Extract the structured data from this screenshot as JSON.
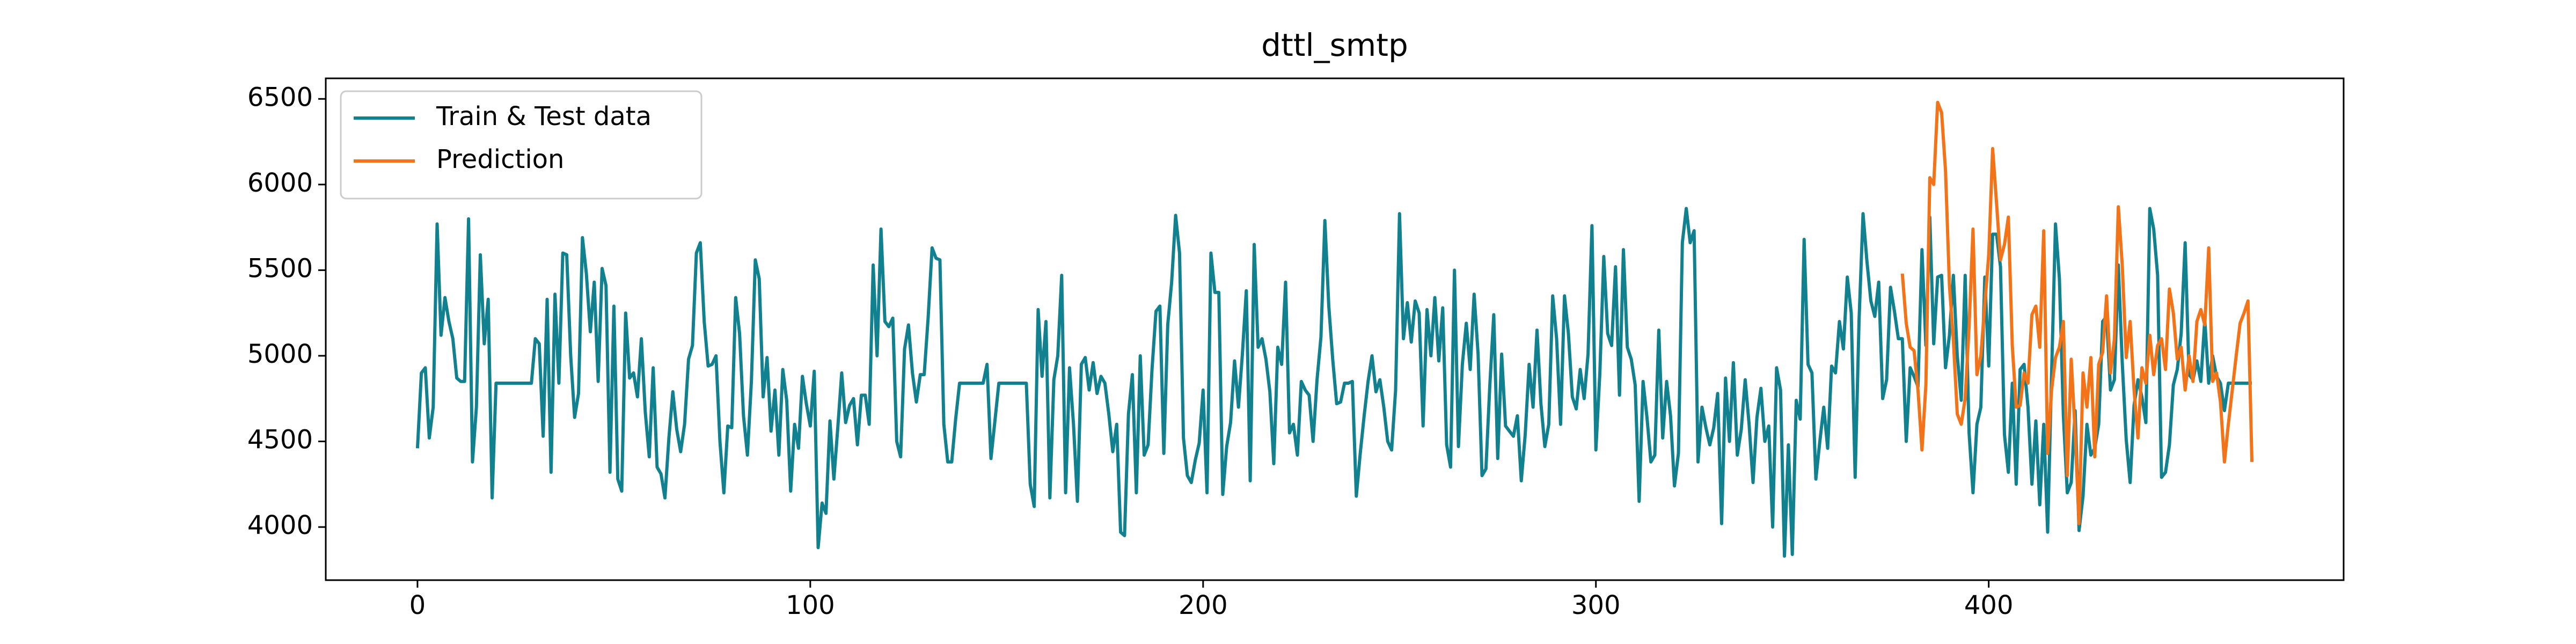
{
  "chart_data": {
    "type": "line",
    "title": "dttl_smtp",
    "xlim": [
      -23.35,
      490.35
    ],
    "xticks": [
      0,
      100,
      200,
      300,
      400
    ],
    "ylim": [
      3690,
      6620
    ],
    "yticks": [
      4000,
      4500,
      5000,
      5500,
      6000,
      6500
    ],
    "legend": "upper left",
    "series": [
      {
        "name": "Train & Test data",
        "color": "#11808f",
        "x": [
          0,
          1,
          2,
          3,
          4,
          5,
          6,
          7,
          8,
          9,
          10,
          11,
          12,
          13,
          14,
          15,
          16,
          17,
          18,
          19,
          20,
          21,
          22,
          23,
          24,
          25,
          26,
          27,
          28,
          29,
          30,
          31,
          32,
          33,
          34,
          35,
          36,
          37,
          38,
          39,
          40,
          41,
          42,
          43,
          44,
          45,
          46,
          47,
          48,
          49,
          50,
          51,
          52,
          53,
          54,
          55,
          56,
          57,
          58,
          59,
          60,
          61,
          62,
          63,
          64,
          65,
          66,
          67,
          68,
          69,
          70,
          71,
          72,
          73,
          74,
          75,
          76,
          77,
          78,
          79,
          80,
          81,
          82,
          83,
          84,
          85,
          86,
          87,
          88,
          89,
          90,
          91,
          92,
          93,
          94,
          95,
          96,
          97,
          98,
          99,
          100,
          101,
          102,
          103,
          104,
          105,
          106,
          107,
          108,
          109,
          110,
          111,
          112,
          113,
          114,
          115,
          116,
          117,
          118,
          119,
          120,
          121,
          122,
          123,
          124,
          125,
          126,
          127,
          128,
          129,
          130,
          131,
          132,
          133,
          134,
          135,
          136,
          137,
          138,
          139,
          140,
          141,
          142,
          143,
          144,
          145,
          146,
          147,
          148,
          149,
          150,
          151,
          152,
          153,
          154,
          155,
          156,
          157,
          158,
          159,
          160,
          161,
          162,
          163,
          164,
          165,
          166,
          167,
          168,
          169,
          170,
          171,
          172,
          173,
          174,
          175,
          176,
          177,
          178,
          179,
          180,
          181,
          182,
          183,
          184,
          185,
          186,
          187,
          188,
          189,
          190,
          191,
          192,
          193,
          194,
          195,
          196,
          197,
          198,
          199,
          200,
          201,
          202,
          203,
          204,
          205,
          206,
          207,
          208,
          209,
          210,
          211,
          212,
          213,
          214,
          215,
          216,
          217,
          218,
          219,
          220,
          221,
          222,
          223,
          224,
          225,
          226,
          227,
          228,
          229,
          230,
          231,
          232,
          233,
          234,
          235,
          236,
          237,
          238,
          239,
          240,
          241,
          242,
          243,
          244,
          245,
          246,
          247,
          248,
          249,
          250,
          251,
          252,
          253,
          254,
          255,
          256,
          257,
          258,
          259,
          260,
          261,
          262,
          263,
          264,
          265,
          266,
          267,
          268,
          269,
          270,
          271,
          272,
          273,
          274,
          275,
          276,
          277,
          278,
          279,
          280,
          281,
          282,
          283,
          284,
          285,
          286,
          287,
          288,
          289,
          290,
          291,
          292,
          293,
          294,
          295,
          296,
          297,
          298,
          299,
          300,
          301,
          302,
          303,
          304,
          305,
          306,
          307,
          308,
          309,
          310,
          311,
          312,
          313,
          314,
          315,
          316,
          317,
          318,
          319,
          320,
          321,
          322,
          323,
          324,
          325,
          326,
          327,
          328,
          329,
          330,
          331,
          332,
          333,
          334,
          335,
          336,
          337,
          338,
          339,
          340,
          341,
          342,
          343,
          344,
          345,
          346,
          347,
          348,
          349,
          350,
          351,
          352,
          353,
          354,
          355,
          356,
          357,
          358,
          359,
          360,
          361,
          362,
          363,
          364,
          365,
          366,
          367,
          368,
          369,
          370,
          371,
          372,
          373,
          374,
          375,
          376,
          377,
          378,
          379,
          380,
          381,
          382,
          383,
          384,
          385,
          386,
          387,
          388,
          389,
          390,
          391,
          392,
          393,
          394,
          395,
          396,
          397,
          398,
          399,
          400,
          401,
          402,
          403,
          404,
          405,
          406,
          407,
          408,
          409,
          410,
          411,
          412,
          413,
          414,
          415,
          416,
          417,
          418,
          419,
          420,
          421,
          422,
          423,
          424,
          425,
          426,
          427,
          428,
          429,
          430,
          431,
          432,
          433,
          434,
          435,
          436,
          437,
          438,
          439,
          440,
          441,
          442,
          443,
          444,
          445,
          446,
          447,
          448,
          449,
          450,
          451,
          452,
          453,
          454,
          455,
          456,
          457,
          458,
          459,
          460,
          461,
          462,
          463,
          464,
          465,
          466,
          467
        ],
        "values": [
          4460,
          4900,
          4930,
          4520,
          4700,
          5770,
          5120,
          5340,
          5200,
          5100,
          4870,
          4850,
          4850,
          5800,
          4380,
          4700,
          5590,
          5070,
          5330,
          4170,
          4840,
          4840,
          4840,
          4840,
          4840,
          4840,
          4840,
          4840,
          4840,
          4840,
          5100,
          5070,
          4530,
          5330,
          4320,
          5360,
          4840,
          5600,
          5590,
          5000,
          4640,
          4780,
          5690,
          5480,
          5140,
          5430,
          4850,
          5510,
          5410,
          4320,
          5290,
          4280,
          4210,
          5250,
          4870,
          4900,
          4760,
          5100,
          4670,
          4410,
          4930,
          4350,
          4310,
          4170,
          4520,
          4790,
          4570,
          4440,
          4600,
          4980,
          5060,
          5600,
          5660,
          5200,
          4940,
          4950,
          5000,
          4500,
          4200,
          4590,
          4580,
          5340,
          5130,
          4650,
          4420,
          4850,
          5560,
          5450,
          4760,
          4990,
          4560,
          4800,
          4420,
          4920,
          4740,
          4210,
          4600,
          4460,
          4880,
          4720,
          4590,
          4910,
          3880,
          4140,
          4080,
          4620,
          4280,
          4580,
          4900,
          4610,
          4710,
          4750,
          4480,
          4770,
          4770,
          4600,
          5530,
          5000,
          5740,
          5200,
          5170,
          5220,
          4500,
          4410,
          5040,
          5180,
          4900,
          4730,
          4890,
          4890,
          5220,
          5630,
          5570,
          5560,
          4600,
          4380,
          4380,
          4630,
          4840,
          4840,
          4840,
          4840,
          4840,
          4840,
          4840,
          4950,
          4400,
          4620,
          4840,
          4840,
          4840,
          4840,
          4840,
          4840,
          4840,
          4840,
          4250,
          4120,
          5270,
          4880,
          5200,
          4170,
          4860,
          5000,
          5470,
          4200,
          4930,
          4600,
          4150,
          4950,
          4990,
          4800,
          4960,
          4780,
          4880,
          4840,
          4660,
          4440,
          4600,
          3970,
          3950,
          4660,
          4890,
          4200,
          5000,
          4420,
          4480,
          4920,
          5260,
          5290,
          4430,
          5180,
          5430,
          5820,
          5600,
          4520,
          4300,
          4260,
          4390,
          4490,
          4800,
          4200,
          5600,
          5370,
          5370,
          4190,
          4470,
          4610,
          4970,
          4700,
          5010,
          5380,
          4270,
          5650,
          5050,
          5100,
          4980,
          4790,
          4370,
          5050,
          4950,
          5430,
          4550,
          4600,
          4420,
          4850,
          4800,
          4770,
          4500,
          4860,
          5110,
          5790,
          5290,
          4980,
          4720,
          4730,
          4840,
          4840,
          4850,
          4180,
          4430,
          4650,
          4850,
          5000,
          4790,
          4860,
          4700,
          4500,
          4450,
          4800,
          5830,
          5100,
          5310,
          5080,
          5320,
          5250,
          4590,
          5270,
          5000,
          5340,
          4970,
          5280,
          4480,
          4350,
          5500,
          4470,
          4950,
          5190,
          4920,
          5360,
          5010,
          4300,
          4340,
          4830,
          5240,
          4400,
          5010,
          4590,
          4560,
          4530,
          4650,
          4270,
          4540,
          4950,
          4700,
          5150,
          4720,
          4470,
          4600,
          5350,
          5100,
          4600,
          5350,
          5130,
          4760,
          4690,
          4920,
          4750,
          5010,
          5760,
          4450,
          4900,
          5580,
          5130,
          5060,
          5520,
          4770,
          5620,
          5050,
          4980,
          4830,
          4150,
          4850,
          4640,
          4380,
          4420,
          5150,
          4520,
          4850,
          4650,
          4240,
          4430,
          5660,
          5860,
          5660,
          5730,
          4380,
          4700,
          4580,
          4480,
          4580,
          4780,
          4020,
          4870,
          4500,
          4960,
          4420,
          4570,
          4860,
          4600,
          4260,
          4640,
          4810,
          4500,
          4590,
          4000,
          4930,
          4800,
          3830,
          4480,
          3840,
          4740,
          4630,
          5680,
          4950,
          4900,
          4280,
          4500,
          4700,
          4460,
          4940,
          4900,
          5200,
          5040,
          5460,
          5250,
          4290,
          5210,
          5830,
          5550,
          5320,
          5230,
          5430,
          4750,
          4860,
          5400,
          5260,
          5100,
          5100,
          4500,
          4930,
          4880,
          4820,
          5620,
          5060,
          5810,
          5070,
          5460,
          5470,
          4930,
          5120,
          5470,
          5000,
          4740,
          5470,
          4550,
          4200,
          4600,
          4700,
          5460,
          4940,
          5710,
          5710,
          5520,
          4540,
          4320,
          4840,
          4250,
          4920,
          4950,
          4700,
          4250,
          4620,
          4130,
          4600,
          3970,
          4890,
          5770,
          5450,
          4650,
          4200,
          4260,
          4680,
          3980,
          4180,
          4600,
          4420,
          4460,
          4600,
          5200,
          5230,
          4800,
          4860,
          5530,
          4960,
          4510,
          4260,
          4710,
          4860,
          4760,
          4610,
          5860,
          5740,
          5470,
          4290,
          4320,
          4480,
          4830,
          4920,
          5130,
          5660,
          4890,
          4860,
          4970,
          4850,
          5210,
          4840,
          5000,
          4880,
          4840,
          4680,
          4840,
          4840,
          4840,
          4840,
          4840,
          4840,
          4840
        ]
      },
      {
        "name": "Prediction",
        "color": "#f27318",
        "x": [
          378,
          379,
          380,
          381,
          382,
          383,
          384,
          385,
          386,
          387,
          388,
          389,
          390,
          391,
          392,
          393,
          394,
          395,
          396,
          397,
          398,
          399,
          400,
          401,
          402,
          403,
          404,
          405,
          406,
          407,
          408,
          409,
          410,
          411,
          412,
          413,
          414,
          415,
          416,
          417,
          418,
          419,
          420,
          421,
          422,
          423,
          424,
          425,
          426,
          427,
          428,
          429,
          430,
          431,
          432,
          433,
          434,
          435,
          436,
          437,
          438,
          439,
          440,
          441,
          442,
          443,
          444,
          445,
          446,
          447,
          448,
          449,
          450,
          451,
          452,
          453,
          454,
          455,
          456,
          457,
          458,
          459,
          460,
          461,
          462,
          463,
          464,
          465,
          466,
          467
        ],
        "values": [
          5480,
          5190,
          5050,
          5030,
          4800,
          4450,
          4830,
          6040,
          6000,
          6480,
          6420,
          6080,
          5410,
          5090,
          4660,
          4600,
          4750,
          5170,
          5740,
          4890,
          5000,
          5300,
          5590,
          6210,
          5890,
          5560,
          5650,
          5810,
          5060,
          4700,
          4710,
          4900,
          4840,
          5240,
          5290,
          5050,
          5730,
          4430,
          4800,
          4990,
          5050,
          5200,
          4300,
          4980,
          4550,
          4020,
          4900,
          4700,
          4990,
          4410,
          4950,
          5020,
          5350,
          4900,
          5100,
          5870,
          5530,
          4990,
          5200,
          4800,
          4520,
          4930,
          4840,
          5120,
          4890,
          5060,
          5100,
          4920,
          5390,
          5250,
          4980,
          5050,
          4800,
          5000,
          4850,
          5200,
          5270,
          5180,
          5630,
          4850,
          4900,
          4730,
          4380,
          4600,
          4800,
          5000,
          5190,
          5250,
          5320,
          4380
        ]
      }
    ]
  }
}
